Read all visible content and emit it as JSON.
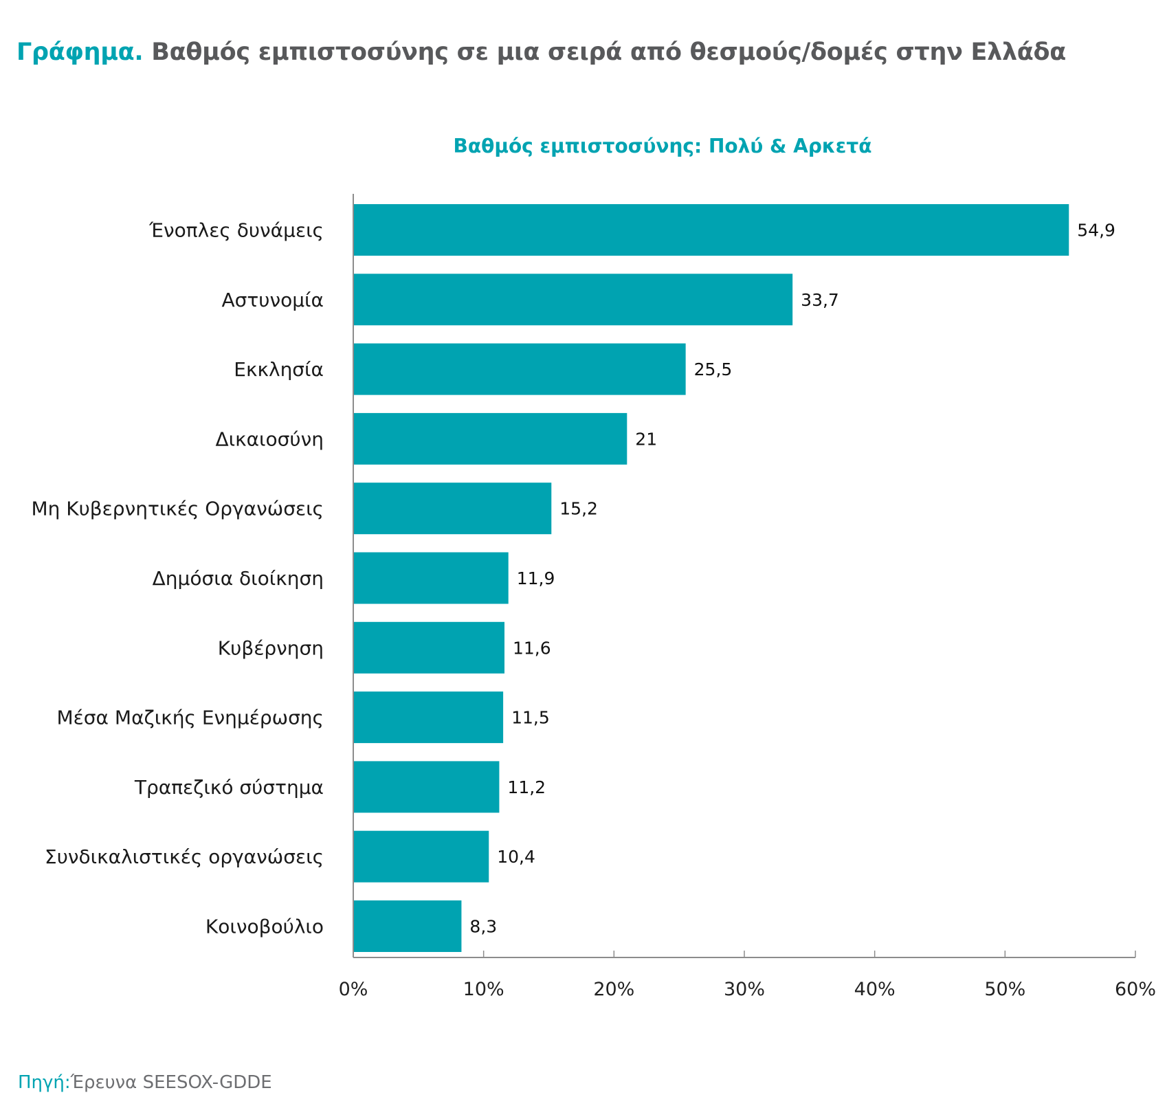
{
  "header": {
    "title_lead": "Γράφημα.",
    "title_rest": " Βαθμός εμπιστοσύνης σε μια σειρά από θεσμούς/δομές στην Ελλάδα"
  },
  "footer": {
    "source_label": "Πηγή:",
    "source_text": "Έρευνα SEESOX-GDDE"
  },
  "colors": {
    "bar": "#00a3b1",
    "accent": "#00a3b1",
    "title": "#58595b",
    "axis": "#8c8c8c"
  },
  "chart_data": {
    "type": "bar",
    "orientation": "horizontal",
    "title": "Βαθμός εμπιστοσύνης: Πολύ & Αρκετά",
    "xlabel": "",
    "ylabel": "",
    "categories": [
      "Ένοπλες δυνάμεις",
      "Αστυνομία",
      "Εκκλησία",
      "Δικαιοσύνη",
      "Μη Κυβερνητικές Οργανώσεις",
      "Δημόσια διοίκηση",
      "Κυβέρνηση",
      "Μέσα Μαζικής Ενημέρωσης",
      "Τραπεζικό σύστημα",
      "Συνδικαλιστικές οργανώσεις",
      "Κοινοβούλιο"
    ],
    "values": [
      54.9,
      33.7,
      25.5,
      21,
      15.2,
      11.9,
      11.6,
      11.5,
      11.2,
      10.4,
      8.3
    ],
    "value_labels": [
      "54,9",
      "33,7",
      "25,5",
      "21",
      "15,2",
      "11,9",
      "11,6",
      "11,5",
      "11,2",
      "10,4",
      "8,3"
    ],
    "xlim": [
      0,
      60
    ],
    "xticks": [
      0,
      10,
      20,
      30,
      40,
      50,
      60
    ],
    "xtick_labels": [
      "0%",
      "10%",
      "20%",
      "30%",
      "40%",
      "50%",
      "60%"
    ],
    "grid": false,
    "legend": "none"
  }
}
